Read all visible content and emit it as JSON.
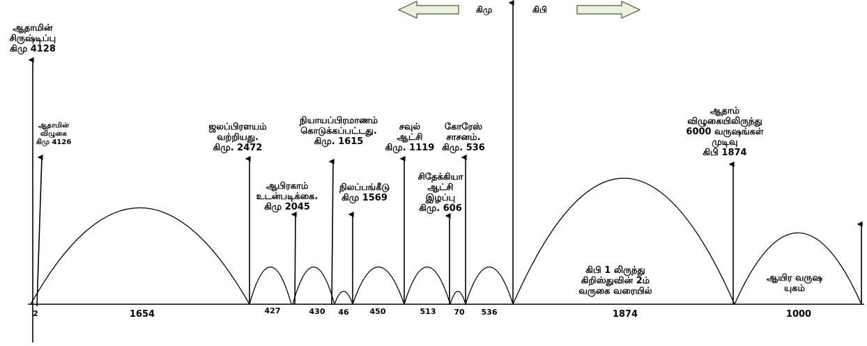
{
  "header": {
    "bc_label": "கிமு",
    "ad_label": "கிபி"
  },
  "events": [
    {
      "id": "creation",
      "lines": [
        "ஆதாமின்",
        "சிருஷ்டிப்பு",
        "கிமு 4128"
      ]
    },
    {
      "id": "fall",
      "lines": [
        "ஆதாமின்",
        "விழுகை",
        "கிமு 4126"
      ]
    },
    {
      "id": "flood",
      "lines": [
        "ஜலப்பிரளயம்",
        "வற்றியது.",
        "கிமு. 2472"
      ]
    },
    {
      "id": "abraham",
      "lines": [
        "ஆபிரகாம்",
        "உடன்படிக்கை.",
        "கிமு 2045"
      ]
    },
    {
      "id": "law",
      "lines": [
        "நியாயப்பிரமாணம்",
        "கொடுக்கப்பட்டது.",
        "கிமு. 1615"
      ]
    },
    {
      "id": "land",
      "lines": [
        "நிலப்பங்கீடு",
        "கிமு 1569"
      ]
    },
    {
      "id": "saul",
      "lines": [
        "சவுல்",
        "ஆட்சி",
        "கிமு. 1119"
      ]
    },
    {
      "id": "zedekiah",
      "lines": [
        "சிதேக்கியா",
        "ஆட்சி",
        "இழப்பு",
        "கிமு. 606"
      ]
    },
    {
      "id": "cyrus",
      "lines": [
        "கோரேஸ்",
        "சாசனம்.",
        "கிமு. 536"
      ]
    },
    {
      "id": "end6000",
      "lines": [
        "ஆதாம்",
        "விழுகையிலிருந்து",
        "6000 வருஷங்கள்",
        "முடிவு",
        "கிபி 1874"
      ]
    }
  ],
  "periods": [
    {
      "id": "p2",
      "label": "2"
    },
    {
      "id": "p1654",
      "label": "1654"
    },
    {
      "id": "p427",
      "label": "427"
    },
    {
      "id": "p430",
      "label": "430"
    },
    {
      "id": "p46",
      "label": "46"
    },
    {
      "id": "p450",
      "label": "450"
    },
    {
      "id": "p513",
      "label": "513"
    },
    {
      "id": "p70",
      "label": "70"
    },
    {
      "id": "p536",
      "label": "536"
    },
    {
      "id": "p1874",
      "label": "1874"
    },
    {
      "id": "p1000",
      "label": "1000"
    }
  ],
  "notes": {
    "gospel_age": [
      "கிபி 1 லிருந்து",
      "கிறிஸ்துவின் 2ம்",
      "வருகை வரையில்"
    ],
    "millennium": [
      "ஆயிர வருஷ",
      "யுகம்"
    ]
  },
  "colors": {
    "line": "#000000",
    "arrow_fill": "#ebf1de",
    "arrow_stroke": "#4a5a2a"
  }
}
